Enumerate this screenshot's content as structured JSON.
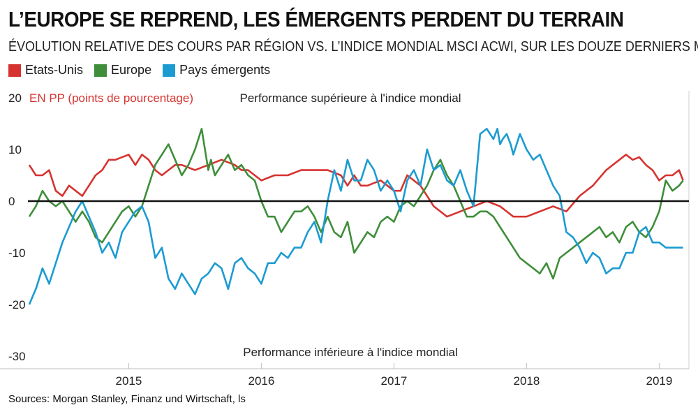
{
  "title": "L’EUROPE SE REPREND, LES ÉMERGENTS PERDENT DU TERRAIN",
  "subtitle": "ÉVOLUTION RELATIVE DES COURS PAR RÉGION VS. L’INDICE MONDIAL MSCI ACWI, SUR LES DOUZE DERNIERS MOIS",
  "source": "Sources: Morgan Stanley, Finanz und Wirtschaft, ls",
  "colors": {
    "us": "#d63330",
    "europe": "#3e8e3a",
    "emerging": "#1b9bd1",
    "unit": "#d63330"
  },
  "chart_data": {
    "type": "line",
    "title": "L’EUROPE SE REPREND, LES ÉMERGENTS PERDENT DU TERRAIN",
    "ylabel": "EN PP (points de pourcentage)",
    "ylim": [
      -30,
      20
    ],
    "xlim": [
      2014.24,
      2019.24
    ],
    "yticks": [
      {
        "value": 20,
        "label": "20"
      },
      {
        "value": 10,
        "label": "10"
      },
      {
        "value": 0,
        "label": "0"
      },
      {
        "value": -10,
        "label": "-10"
      },
      {
        "value": -20,
        "label": "-20"
      },
      {
        "value": -30,
        "label": "-30"
      }
    ],
    "xticks": [
      {
        "value": 2015,
        "label": "2015"
      },
      {
        "value": 2016,
        "label": "2016"
      },
      {
        "value": 2017,
        "label": "2017"
      },
      {
        "value": 2018,
        "label": "2018"
      },
      {
        "value": 2019,
        "label": "2019"
      }
    ],
    "annotations": {
      "upper": "Performance supérieure à l'indice mondial",
      "lower": "Performance inférieure à l'indice mondial"
    },
    "series": [
      {
        "name": "Etats-Unis",
        "key": "us",
        "x": [
          2014.25,
          2014.3,
          2014.35,
          2014.4,
          2014.45,
          2014.5,
          2014.55,
          2014.6,
          2014.65,
          2014.7,
          2014.75,
          2014.8,
          2014.85,
          2014.9,
          2014.95,
          2015.0,
          2015.05,
          2015.1,
          2015.15,
          2015.2,
          2015.25,
          2015.3,
          2015.35,
          2015.4,
          2015.5,
          2015.6,
          2015.7,
          2015.8,
          2015.85,
          2015.9,
          2015.95,
          2016.0,
          2016.1,
          2016.2,
          2016.3,
          2016.4,
          2016.5,
          2016.6,
          2016.65,
          2016.7,
          2016.75,
          2016.8,
          2016.85,
          2016.9,
          2017.0,
          2017.05,
          2017.1,
          2017.2,
          2017.3,
          2017.4,
          2017.5,
          2017.6,
          2017.7,
          2017.8,
          2017.9,
          2018.0,
          2018.1,
          2018.2,
          2018.3,
          2018.4,
          2018.5,
          2018.6,
          2018.7,
          2018.75,
          2018.8,
          2018.85,
          2018.9,
          2018.95,
          2019.0,
          2019.05,
          2019.1,
          2019.15,
          2019.18
        ],
        "values": [
          7,
          5,
          5,
          6,
          2,
          1,
          3,
          2,
          1,
          3,
          5,
          6,
          8,
          8,
          8.5,
          9,
          7,
          9,
          8,
          6,
          5,
          6,
          7,
          7,
          6,
          7,
          8,
          7,
          6,
          6,
          5,
          4,
          5,
          5,
          6,
          6,
          6,
          5,
          3,
          5,
          3,
          3,
          3.5,
          4,
          2,
          2,
          5,
          3,
          -1,
          -3,
          -2,
          -1,
          0,
          -1,
          -3,
          -3,
          -2,
          -1,
          -2,
          1,
          3,
          6,
          8,
          9,
          8,
          8.5,
          7,
          6,
          4,
          5,
          5,
          6,
          4
        ]
      },
      {
        "name": "Europe",
        "key": "europe",
        "x": [
          2014.25,
          2014.3,
          2014.35,
          2014.4,
          2014.45,
          2014.5,
          2014.55,
          2014.6,
          2014.65,
          2014.7,
          2014.75,
          2014.8,
          2014.85,
          2014.9,
          2014.95,
          2015.0,
          2015.05,
          2015.1,
          2015.15,
          2015.2,
          2015.25,
          2015.3,
          2015.35,
          2015.4,
          2015.45,
          2015.5,
          2015.55,
          2015.6,
          2015.62,
          2015.65,
          2015.7,
          2015.75,
          2015.8,
          2015.85,
          2015.9,
          2015.95,
          2016.0,
          2016.05,
          2016.1,
          2016.15,
          2016.2,
          2016.25,
          2016.3,
          2016.35,
          2016.4,
          2016.45,
          2016.5,
          2016.55,
          2016.6,
          2016.65,
          2016.7,
          2016.75,
          2016.8,
          2016.85,
          2016.9,
          2016.95,
          2017.0,
          2017.05,
          2017.1,
          2017.15,
          2017.2,
          2017.25,
          2017.3,
          2017.35,
          2017.4,
          2017.45,
          2017.5,
          2017.55,
          2017.6,
          2017.65,
          2017.7,
          2017.75,
          2017.8,
          2017.85,
          2017.9,
          2017.95,
          2018.0,
          2018.05,
          2018.1,
          2018.15,
          2018.2,
          2018.25,
          2018.3,
          2018.35,
          2018.4,
          2018.45,
          2018.5,
          2018.55,
          2018.6,
          2018.65,
          2018.7,
          2018.75,
          2018.8,
          2018.85,
          2018.9,
          2018.95,
          2019.0,
          2019.05,
          2019.1,
          2019.15,
          2019.18
        ],
        "values": [
          -3,
          -1,
          2,
          0,
          -1,
          0,
          -2,
          -4,
          -2,
          -4,
          -7,
          -8,
          -6,
          -4,
          -2,
          -1,
          -3,
          -1,
          3,
          7,
          9,
          11,
          8,
          5,
          7,
          10,
          14,
          6,
          8,
          5,
          7,
          9,
          6,
          7,
          5,
          4,
          0,
          -3,
          -3,
          -6,
          -4,
          -2,
          -2,
          -1,
          -3,
          -6,
          -3,
          -6,
          -7,
          -4,
          -10,
          -8,
          -6,
          -7,
          -4,
          -3,
          -4,
          -1,
          0,
          -1,
          1,
          3,
          6,
          8,
          5,
          3,
          0,
          -3,
          -3,
          -2,
          -2,
          -3,
          -5,
          -7,
          -9,
          -11,
          -12,
          -13,
          -14,
          -12,
          -15,
          -11,
          -10,
          -9,
          -8,
          -7,
          -6,
          -5,
          -7,
          -6,
          -8,
          -5,
          -4,
          -6,
          -7,
          -5,
          -2,
          4,
          2,
          3,
          4
        ]
      },
      {
        "name": "Pays émergents",
        "key": "emerging",
        "x": [
          2014.25,
          2014.3,
          2014.35,
          2014.4,
          2014.45,
          2014.5,
          2014.55,
          2014.6,
          2014.65,
          2014.7,
          2014.75,
          2014.8,
          2014.85,
          2014.9,
          2014.95,
          2015.0,
          2015.05,
          2015.1,
          2015.15,
          2015.2,
          2015.25,
          2015.3,
          2015.35,
          2015.4,
          2015.45,
          2015.5,
          2015.55,
          2015.6,
          2015.65,
          2015.7,
          2015.75,
          2015.8,
          2015.85,
          2015.9,
          2015.95,
          2016.0,
          2016.05,
          2016.1,
          2016.15,
          2016.2,
          2016.25,
          2016.3,
          2016.35,
          2016.4,
          2016.45,
          2016.5,
          2016.55,
          2016.6,
          2016.65,
          2016.7,
          2016.75,
          2016.8,
          2016.85,
          2016.9,
          2016.95,
          2017.0,
          2017.05,
          2017.1,
          2017.15,
          2017.2,
          2017.25,
          2017.3,
          2017.35,
          2017.4,
          2017.45,
          2017.5,
          2017.55,
          2017.6,
          2017.65,
          2017.7,
          2017.75,
          2017.78,
          2017.8,
          2017.82,
          2017.85,
          2017.88,
          2017.9,
          2017.95,
          2018.0,
          2018.05,
          2018.1,
          2018.15,
          2018.2,
          2018.25,
          2018.3,
          2018.35,
          2018.4,
          2018.45,
          2018.5,
          2018.55,
          2018.6,
          2018.65,
          2018.7,
          2018.75,
          2018.8,
          2018.85,
          2018.9,
          2018.95,
          2019.0,
          2019.05,
          2019.1,
          2019.15,
          2019.18
        ],
        "values": [
          -20,
          -17,
          -13,
          -16,
          -12,
          -8,
          -5,
          -2,
          0,
          -3,
          -6,
          -10,
          -8,
          -11,
          -6,
          -4,
          -2,
          -1,
          -4,
          -11,
          -9,
          -15,
          -17,
          -14,
          -16,
          -18,
          -15,
          -14,
          -12,
          -13,
          -17,
          -12,
          -11,
          -13,
          -14,
          -16,
          -12,
          -12,
          -10,
          -11,
          -9,
          -9,
          -6,
          -4,
          -8,
          0,
          6,
          2,
          8,
          4,
          4,
          8,
          6,
          2,
          4,
          2,
          -2,
          4,
          6,
          3,
          10,
          6,
          7,
          4,
          3,
          6,
          2,
          -1,
          13,
          14,
          12,
          14,
          11,
          12,
          13,
          11,
          9,
          13,
          10,
          8,
          9,
          6,
          3,
          1,
          -6,
          -7,
          -9,
          -12,
          -10,
          -11,
          -14,
          -13,
          -13,
          -10,
          -10,
          -6,
          -5,
          -8,
          -8,
          -9,
          -9,
          -9,
          -9
        ]
      }
    ]
  }
}
